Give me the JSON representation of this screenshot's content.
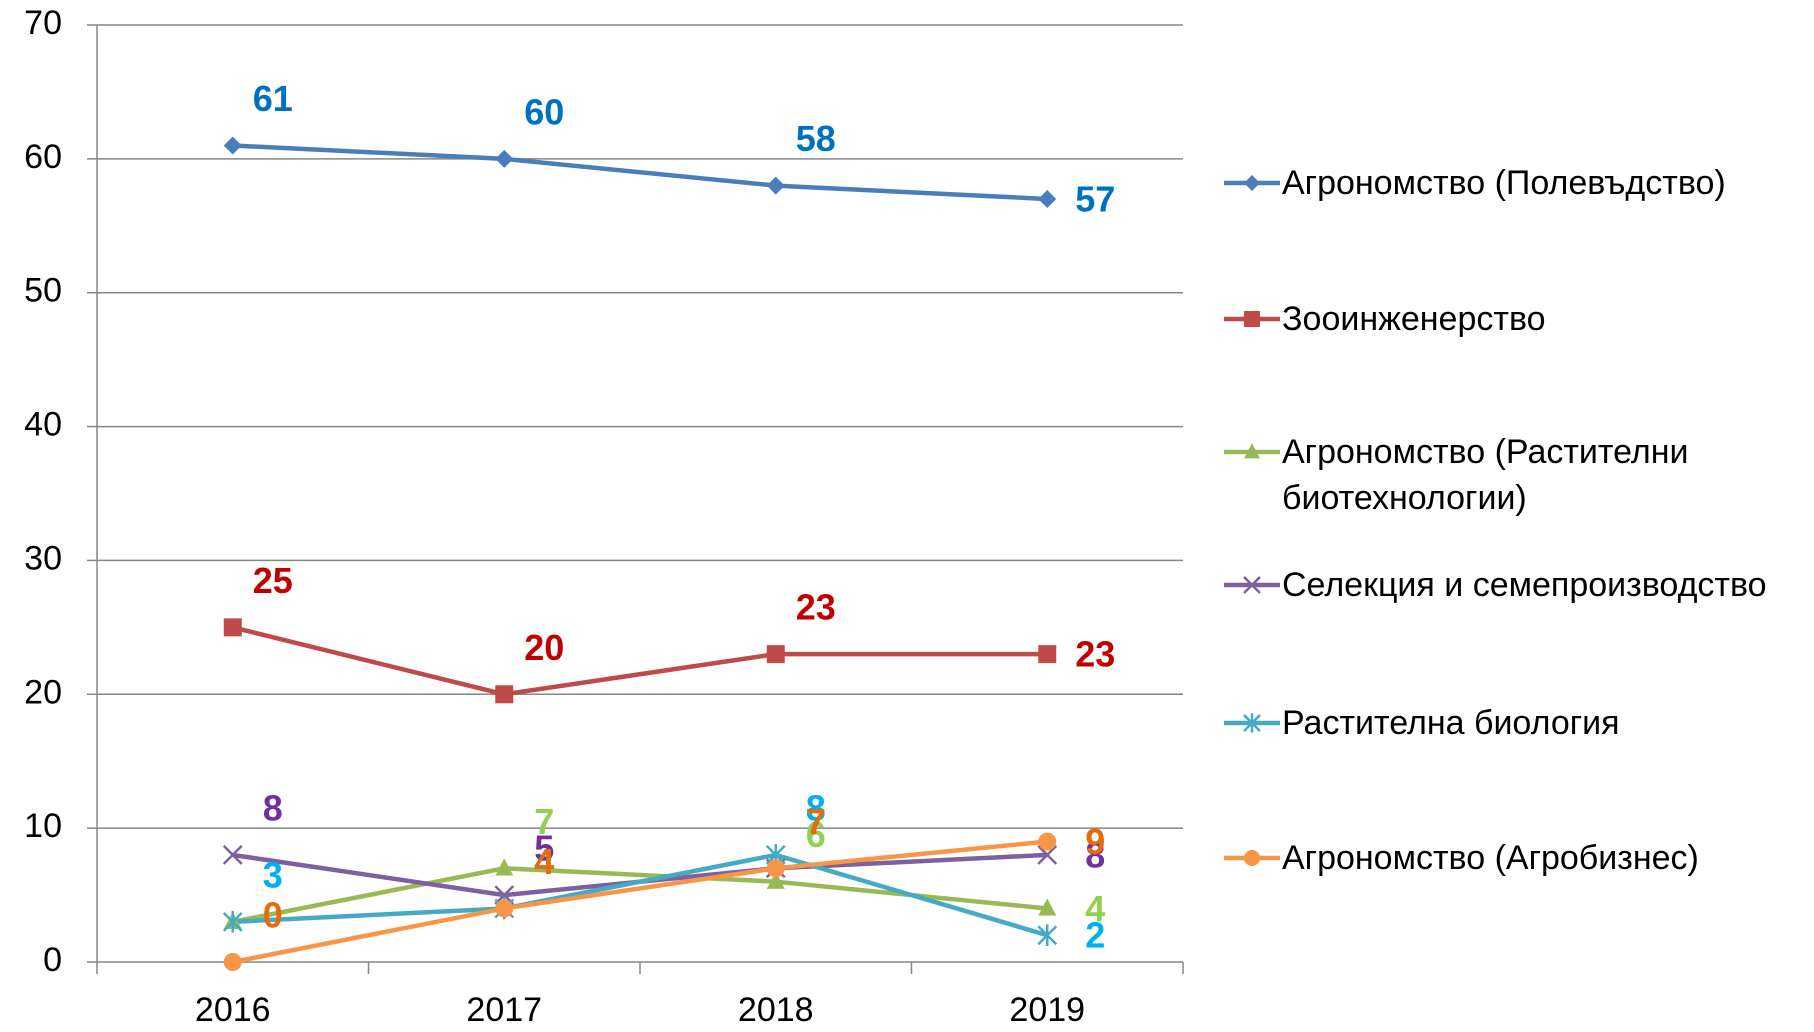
{
  "chart_data": {
    "type": "line",
    "categories": [
      "2016",
      "2017",
      "2018",
      "2019"
    ],
    "series": [
      {
        "name": "Агрономство (Полевъдство)",
        "color": "#4a7ebb",
        "label_color": "#0070c0",
        "marker": "diamond",
        "values": [
          61,
          60,
          58,
          57
        ]
      },
      {
        "name": "Зооинженерство",
        "color": "#be4b48",
        "label_color": "#c00000",
        "marker": "square",
        "values": [
          25,
          20,
          23,
          23
        ]
      },
      {
        "name": "Агрономство (Растителни биотехнологии)",
        "color": "#98b954",
        "label_color": "#92d050",
        "marker": "triangle",
        "values": [
          3,
          7,
          6,
          4
        ]
      },
      {
        "name": "Селекция и семепроизводство",
        "color": "#7d60a0",
        "label_color": "#7030a0",
        "marker": "x",
        "values": [
          8,
          5,
          7,
          8
        ]
      },
      {
        "name": "Растителна биология",
        "color": "#46aac5",
        "label_color": "#00b0f0",
        "marker": "star",
        "values": [
          3,
          4,
          8,
          2
        ]
      },
      {
        "name": "Агрономство (Агробизнес)",
        "color": "#f79646",
        "label_color": "#e46c0a",
        "marker": "circle",
        "values": [
          0,
          4,
          7,
          9
        ]
      }
    ],
    "ylim": [
      0,
      70
    ],
    "yticks": [
      0,
      10,
      20,
      30,
      40,
      50,
      60,
      70
    ],
    "grid": true,
    "legend": "right"
  }
}
